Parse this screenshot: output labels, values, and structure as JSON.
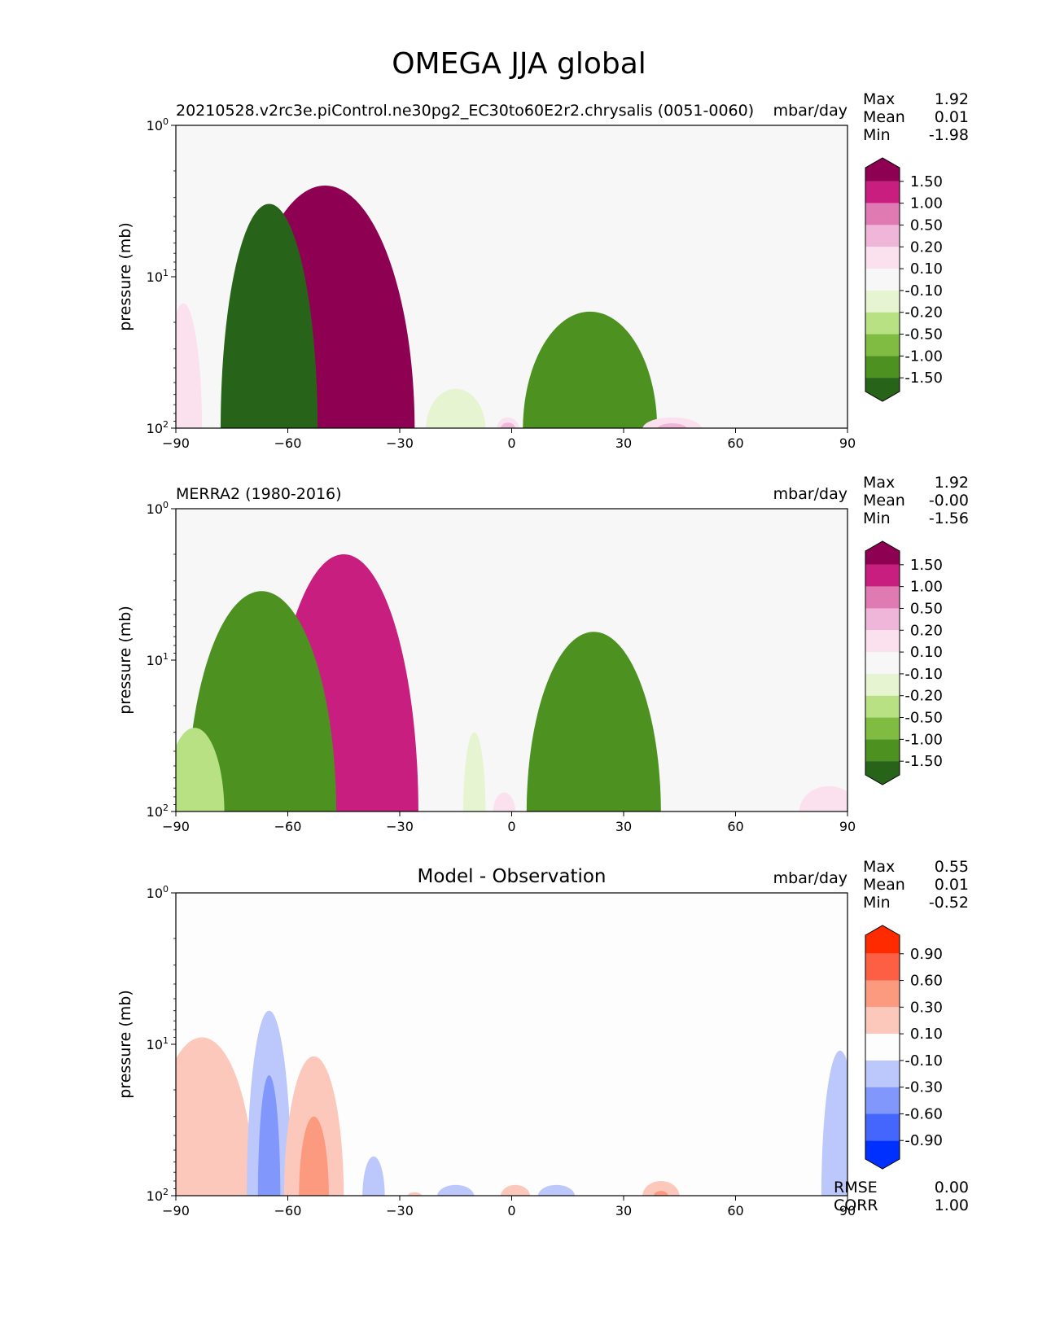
{
  "figure_title": "OMEGA JJA global",
  "colors": {
    "pos": [
      "#fbe0ee",
      "#f0b6d9",
      "#e07ab3",
      "#c81e7f",
      "#8e0152"
    ],
    "neutral": "#f7f7f7",
    "neg": [
      "#e6f4d2",
      "#b8e184",
      "#7fbc41",
      "#4d9221",
      "#276419"
    ],
    "diff_pos": [
      "#fdc8bc",
      "#fc9a80",
      "#fc5f43",
      "#ff2b00"
    ],
    "diff_neg": [
      "#bcc7fc",
      "#8197fc",
      "#4566fc",
      "#0030fd"
    ],
    "diff_neutral": "#fdfdfd"
  },
  "chart_data": [
    {
      "type": "contourf",
      "panel_left_title": "20210528.v2rc3e.piControl.ne30pg2_EC30to60E2r2.chrysalis (0051-0060)",
      "units": "mbar/day",
      "ylabel": "pressure (mb)",
      "x_ticks": [
        "−90",
        "−60",
        "−30",
        "0",
        "30",
        "60",
        "90"
      ],
      "y_ticks": [
        {
          "base": "10",
          "exp": "0"
        },
        {
          "base": "10",
          "exp": "1"
        },
        {
          "base": "10",
          "exp": "2"
        }
      ],
      "xlim": [
        -90,
        90
      ],
      "ylim_log_mb": [
        1,
        100
      ],
      "stats": [
        {
          "label": "Max",
          "value": "1.92"
        },
        {
          "label": "Mean",
          "value": "0.01"
        },
        {
          "label": "Min",
          "value": "-1.98"
        }
      ],
      "colorbar_labels": [
        "1.50",
        "1.00",
        "0.50",
        "0.20",
        "0.10",
        "-0.10",
        "-0.20",
        "-0.50",
        "-1.00",
        "-1.50"
      ],
      "features": [
        {
          "sign": "pos",
          "center": -50,
          "half_width": [
            8,
            11,
            14,
            19,
            24
          ],
          "top_mb": [
            63,
            35,
            14,
            4.5,
            2.5
          ],
          "phase_lat": -38
        },
        {
          "sign": "neg",
          "center": -65,
          "half_width": [
            4,
            6,
            8,
            11,
            13
          ],
          "top_mb": [
            55,
            25,
            8,
            4.7,
            3.3
          ]
        },
        {
          "sign": "neg",
          "center": 21,
          "half_width": [
            6,
            9,
            13,
            18
          ],
          "top_mb": [
            85,
            65,
            50,
            17
          ]
        },
        {
          "sign": "neg",
          "center": -15,
          "half_width": [
            8
          ],
          "top_mb": [
            55
          ]
        },
        {
          "sign": "pos",
          "center": -88,
          "half_width": [
            5
          ],
          "top_mb": [
            15
          ]
        },
        {
          "sign": "pos",
          "center": 43,
          "half_width": [
            8,
            4
          ],
          "top_mb": [
            85,
            93
          ]
        },
        {
          "sign": "pos",
          "center": -1,
          "half_width": [
            3,
            2
          ],
          "top_mb": [
            85,
            92
          ]
        }
      ]
    },
    {
      "type": "contourf",
      "panel_left_title": "MERRA2 (1980-2016)",
      "units": "mbar/day",
      "ylabel": "pressure (mb)",
      "x_ticks": [
        "−90",
        "−60",
        "−30",
        "0",
        "30",
        "60",
        "90"
      ],
      "y_ticks": [
        {
          "base": "10",
          "exp": "0"
        },
        {
          "base": "10",
          "exp": "1"
        },
        {
          "base": "10",
          "exp": "2"
        }
      ],
      "xlim": [
        -90,
        90
      ],
      "ylim_log_mb": [
        1,
        100
      ],
      "stats": [
        {
          "label": "Max",
          "value": "1.92"
        },
        {
          "label": "Mean",
          "value": "-0.00"
        },
        {
          "label": "Min",
          "value": "-1.56"
        }
      ],
      "colorbar_labels": [
        "1.50",
        "1.00",
        "0.50",
        "0.20",
        "0.10",
        "-0.10",
        "-0.20",
        "-0.50",
        "-1.00",
        "-1.50"
      ],
      "features": [
        {
          "sign": "pos",
          "center": -45,
          "half_width": [
            6,
            10,
            14,
            20
          ],
          "top_mb": [
            50,
            19,
            6,
            2
          ]
        },
        {
          "sign": "neg",
          "center": -67,
          "half_width": [
            5,
            8,
            14,
            20
          ],
          "top_mb": [
            50,
            18,
            7,
            3.5
          ]
        },
        {
          "sign": "neg",
          "center": -85,
          "half_width": [
            6,
            8
          ],
          "top_mb": [
            55,
            28
          ]
        },
        {
          "sign": "neg",
          "center": 22,
          "half_width": [
            6,
            10,
            14,
            18
          ],
          "top_mb": [
            90,
            50,
            12,
            6.5
          ]
        },
        {
          "sign": "neg",
          "center": -10,
          "half_width": [
            3
          ],
          "top_mb": [
            30
          ]
        },
        {
          "sign": "pos",
          "center": 85,
          "half_width": [
            8
          ],
          "top_mb": [
            68
          ]
        },
        {
          "sign": "pos",
          "center": -2,
          "half_width": [
            3
          ],
          "top_mb": [
            75
          ]
        }
      ]
    },
    {
      "type": "contourf",
      "panel_title": "Model - Observation",
      "units": "mbar/day",
      "ylabel": "pressure (mb)",
      "x_ticks": [
        "−90",
        "−60",
        "−30",
        "0",
        "30",
        "60",
        "90"
      ],
      "y_ticks": [
        {
          "base": "10",
          "exp": "0"
        },
        {
          "base": "10",
          "exp": "1"
        },
        {
          "base": "10",
          "exp": "2"
        }
      ],
      "xlim": [
        -90,
        90
      ],
      "ylim_log_mb": [
        1,
        100
      ],
      "stats": [
        {
          "label": "Max",
          "value": "0.55"
        },
        {
          "label": "Mean",
          "value": "0.01"
        },
        {
          "label": "Min",
          "value": "-0.52"
        }
      ],
      "extra_stats": [
        {
          "label": "RMSE",
          "value": "0.00"
        },
        {
          "label": "CORR",
          "value": "1.00"
        }
      ],
      "colorbar_labels": [
        "0.90",
        "0.60",
        "0.30",
        "0.10",
        "-0.10",
        "-0.30",
        "-0.60",
        "-0.90"
      ],
      "features": [
        {
          "sign": "pos",
          "center": -83,
          "half_width": [
            14
          ],
          "top_mb": [
            9
          ]
        },
        {
          "sign": "pos",
          "center": -77,
          "half_width": [
            3
          ],
          "top_mb": [
            80
          ]
        },
        {
          "sign": "neg",
          "center": -65,
          "half_width": [
            6,
            3
          ],
          "top_mb": [
            6,
            16
          ]
        },
        {
          "sign": "pos",
          "center": -53,
          "half_width": [
            8,
            4
          ],
          "top_mb": [
            12,
            30
          ]
        },
        {
          "sign": "neg",
          "center": 88,
          "half_width": [
            5
          ],
          "top_mb": [
            11
          ]
        },
        {
          "sign": "neg",
          "center": -37,
          "half_width": [
            3
          ],
          "top_mb": [
            55
          ]
        },
        {
          "sign": "neg",
          "center": -15,
          "half_width": [
            5
          ],
          "top_mb": [
            85
          ]
        },
        {
          "sign": "neg",
          "center": 12,
          "half_width": [
            5
          ],
          "top_mb": [
            85
          ]
        },
        {
          "sign": "pos",
          "center": 1,
          "half_width": [
            4
          ],
          "top_mb": [
            85
          ]
        },
        {
          "sign": "pos",
          "center": 40,
          "half_width": [
            5,
            2
          ],
          "top_mb": [
            80,
            93
          ]
        },
        {
          "sign": "pos",
          "center": -26,
          "half_width": [
            2
          ],
          "top_mb": [
            95
          ]
        }
      ]
    }
  ]
}
